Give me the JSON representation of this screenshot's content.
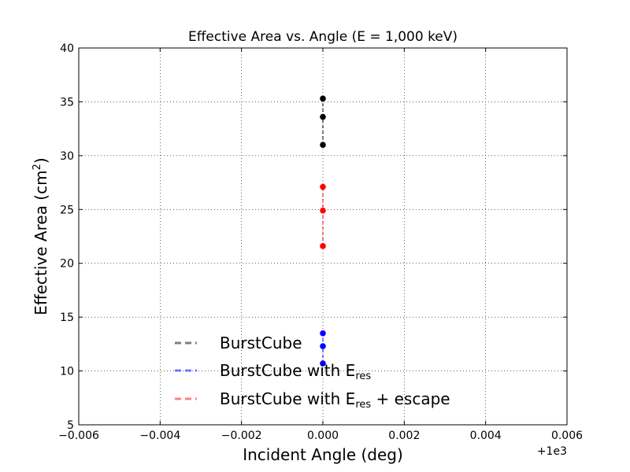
{
  "chart_data": {
    "type": "scatter",
    "title": "Effective Area vs. Angle (E = 1,000 keV)",
    "xlabel": "Incident Angle (deg)",
    "ylabel_main": "Effective Area (cm",
    "ylabel_sup": "2",
    "ylabel_close": ")",
    "x_offset_label": "+1e3",
    "xlim": [
      -0.006,
      0.006
    ],
    "ylim": [
      5,
      40
    ],
    "x_ticks": [
      -0.006,
      -0.004,
      -0.002,
      0.0,
      0.002,
      0.004,
      0.006
    ],
    "x_tick_labels": [
      "−0.006",
      "−0.004",
      "−0.002",
      "0.000",
      "0.002",
      "0.004",
      "0.006"
    ],
    "y_ticks": [
      5,
      10,
      15,
      20,
      25,
      30,
      35,
      40
    ],
    "y_tick_labels": [
      "5",
      "10",
      "15",
      "20",
      "25",
      "30",
      "35",
      "40"
    ],
    "grid": true,
    "legend_position": "lower-left",
    "series": [
      {
        "name": "BurstCube",
        "color": "#000000",
        "x": [
          0,
          0,
          0
        ],
        "y": [
          35.3,
          33.6,
          31.0
        ]
      },
      {
        "name": "BurstCube with E",
        "name_sub": "res",
        "name_suffix": "",
        "color": "#0000ff",
        "x": [
          0,
          0,
          0
        ],
        "y": [
          13.5,
          12.3,
          10.7
        ]
      },
      {
        "name": "BurstCube with E",
        "name_sub": "res",
        "name_suffix": " + escape",
        "color": "#ff0000",
        "x": [
          0,
          0,
          0
        ],
        "y": [
          27.1,
          24.9,
          21.6
        ]
      }
    ],
    "legend_order": [
      0,
      1,
      2
    ]
  }
}
